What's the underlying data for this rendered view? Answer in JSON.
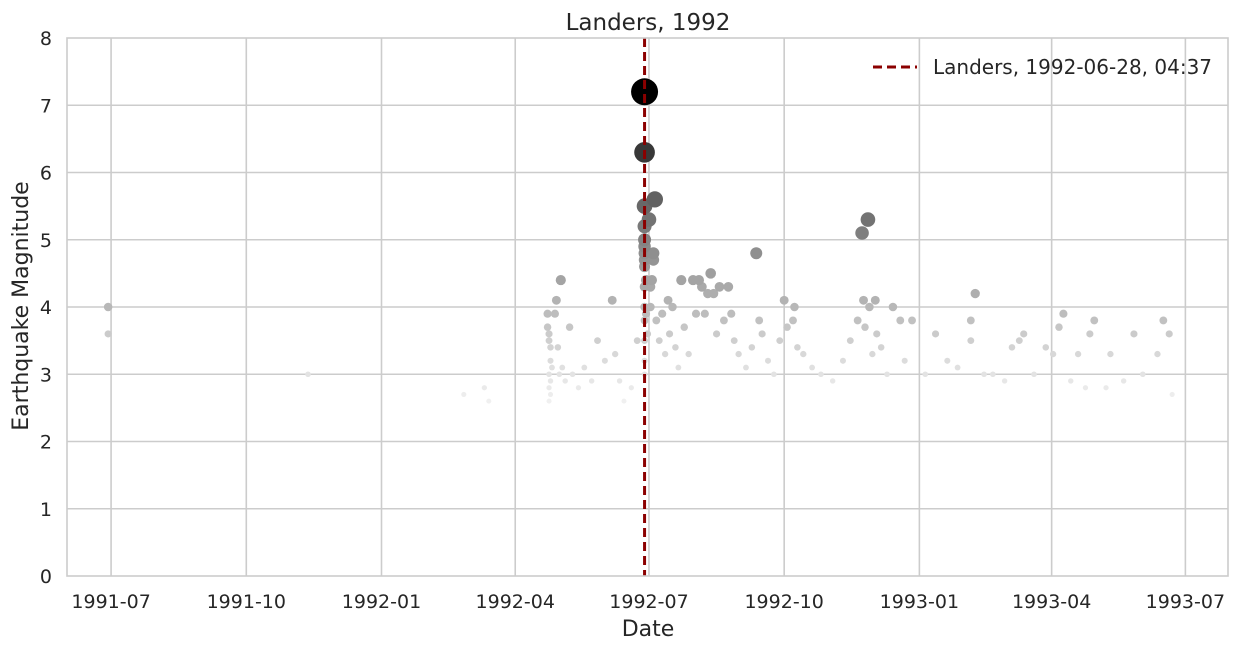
{
  "chart_data": {
    "type": "scatter",
    "title": "Landers, 1992",
    "xlabel": "Date",
    "ylabel": "Earthquake Magnitude",
    "xlim": [
      "1991-06-01",
      "1993-07-30"
    ],
    "ylim": [
      0,
      8
    ],
    "x_ticks": [
      "1991-07",
      "1991-10",
      "1992-01",
      "1992-04",
      "1992-07",
      "1992-10",
      "1993-01",
      "1993-04",
      "1993-07"
    ],
    "y_ticks": [
      "0",
      "1",
      "2",
      "3",
      "4",
      "5",
      "6",
      "7",
      "8"
    ],
    "grid": true,
    "legend": {
      "position": "top-right",
      "entries": [
        "Landers, 1992-06-28, 04:37"
      ]
    },
    "mainshock": {
      "label": "Landers, 1992-06-28, 04:37",
      "date": "1992-06-28",
      "magnitude": 7.2,
      "color": "#8b0000"
    },
    "series": [
      {
        "color_scale": [
          "#f2f2f2",
          "#000000"
        ],
        "points": [
          {
            "date": "1991-06-29",
            "mag": 4.0
          },
          {
            "date": "1991-06-29",
            "mag": 3.6
          },
          {
            "date": "1991-11-12",
            "mag": 3.0
          },
          {
            "date": "1992-02-26",
            "mag": 2.7
          },
          {
            "date": "1992-03-11",
            "mag": 2.8
          },
          {
            "date": "1992-03-14",
            "mag": 2.6
          },
          {
            "date": "1992-04-23",
            "mag": 3.9
          },
          {
            "date": "1992-04-23",
            "mag": 3.7
          },
          {
            "date": "1992-04-24",
            "mag": 3.6
          },
          {
            "date": "1992-04-24",
            "mag": 3.5
          },
          {
            "date": "1992-04-25",
            "mag": 3.4
          },
          {
            "date": "1992-04-25",
            "mag": 3.2
          },
          {
            "date": "1992-04-24",
            "mag": 3.0
          },
          {
            "date": "1992-04-25",
            "mag": 2.9
          },
          {
            "date": "1992-04-24",
            "mag": 2.8
          },
          {
            "date": "1992-04-25",
            "mag": 2.7
          },
          {
            "date": "1992-04-24",
            "mag": 2.6
          },
          {
            "date": "1992-04-26",
            "mag": 3.1
          },
          {
            "date": "1992-04-28",
            "mag": 3.9
          },
          {
            "date": "1992-04-29",
            "mag": 4.1
          },
          {
            "date": "1992-04-30",
            "mag": 3.4
          },
          {
            "date": "1992-05-01",
            "mag": 3.0
          },
          {
            "date": "1992-05-02",
            "mag": 4.4
          },
          {
            "date": "1992-05-03",
            "mag": 3.1
          },
          {
            "date": "1992-05-05",
            "mag": 2.9
          },
          {
            "date": "1992-05-08",
            "mag": 3.7
          },
          {
            "date": "1992-05-10",
            "mag": 3.0
          },
          {
            "date": "1992-05-14",
            "mag": 2.8
          },
          {
            "date": "1992-05-18",
            "mag": 3.1
          },
          {
            "date": "1992-05-23",
            "mag": 2.9
          },
          {
            "date": "1992-05-27",
            "mag": 3.5
          },
          {
            "date": "1992-06-01",
            "mag": 3.2
          },
          {
            "date": "1992-06-06",
            "mag": 4.1
          },
          {
            "date": "1992-06-08",
            "mag": 3.3
          },
          {
            "date": "1992-06-11",
            "mag": 2.9
          },
          {
            "date": "1992-06-14",
            "mag": 2.6
          },
          {
            "date": "1992-06-19",
            "mag": 2.8
          },
          {
            "date": "1992-06-23",
            "mag": 3.5
          },
          {
            "date": "1992-06-28",
            "mag": 7.2
          },
          {
            "date": "1992-06-28",
            "mag": 6.3
          },
          {
            "date": "1992-06-28",
            "mag": 5.5
          },
          {
            "date": "1992-06-28",
            "mag": 5.2
          },
          {
            "date": "1992-06-28",
            "mag": 5.0
          },
          {
            "date": "1992-06-28",
            "mag": 4.9
          },
          {
            "date": "1992-06-28",
            "mag": 4.8
          },
          {
            "date": "1992-06-28",
            "mag": 4.7
          },
          {
            "date": "1992-06-28",
            "mag": 4.6
          },
          {
            "date": "1992-06-28",
            "mag": 4.3
          },
          {
            "date": "1992-06-28",
            "mag": 4.0
          },
          {
            "date": "1992-06-28",
            "mag": 3.8
          },
          {
            "date": "1992-06-28",
            "mag": 3.5
          },
          {
            "date": "1992-06-28",
            "mag": 3.2
          },
          {
            "date": "1992-06-28",
            "mag": 3.0
          },
          {
            "date": "1992-06-29",
            "mag": 4.4
          },
          {
            "date": "1992-06-29",
            "mag": 3.9
          },
          {
            "date": "1992-06-30",
            "mag": 3.6
          },
          {
            "date": "1992-07-01",
            "mag": 5.3
          },
          {
            "date": "1992-07-02",
            "mag": 4.3
          },
          {
            "date": "1992-07-02",
            "mag": 4.0
          },
          {
            "date": "1992-07-03",
            "mag": 4.4
          },
          {
            "date": "1992-07-04",
            "mag": 4.8
          },
          {
            "date": "1992-07-04",
            "mag": 4.7
          },
          {
            "date": "1992-07-05",
            "mag": 5.6
          },
          {
            "date": "1992-07-06",
            "mag": 3.8
          },
          {
            "date": "1992-07-08",
            "mag": 3.5
          },
          {
            "date": "1992-07-10",
            "mag": 3.9
          },
          {
            "date": "1992-07-12",
            "mag": 3.3
          },
          {
            "date": "1992-07-14",
            "mag": 4.1
          },
          {
            "date": "1992-07-15",
            "mag": 3.6
          },
          {
            "date": "1992-07-17",
            "mag": 4.0
          },
          {
            "date": "1992-07-19",
            "mag": 3.4
          },
          {
            "date": "1992-07-21",
            "mag": 3.1
          },
          {
            "date": "1992-07-23",
            "mag": 4.4
          },
          {
            "date": "1992-07-25",
            "mag": 3.7
          },
          {
            "date": "1992-07-28",
            "mag": 3.3
          },
          {
            "date": "1992-07-31",
            "mag": 4.4
          },
          {
            "date": "1992-08-02",
            "mag": 3.9
          },
          {
            "date": "1992-08-04",
            "mag": 4.4
          },
          {
            "date": "1992-08-06",
            "mag": 4.3
          },
          {
            "date": "1992-08-08",
            "mag": 3.9
          },
          {
            "date": "1992-08-10",
            "mag": 4.2
          },
          {
            "date": "1992-08-12",
            "mag": 4.5
          },
          {
            "date": "1992-08-14",
            "mag": 4.2
          },
          {
            "date": "1992-08-16",
            "mag": 3.6
          },
          {
            "date": "1992-08-18",
            "mag": 4.3
          },
          {
            "date": "1992-08-21",
            "mag": 3.8
          },
          {
            "date": "1992-08-24",
            "mag": 4.3
          },
          {
            "date": "1992-08-26",
            "mag": 3.9
          },
          {
            "date": "1992-08-28",
            "mag": 3.5
          },
          {
            "date": "1992-08-31",
            "mag": 3.3
          },
          {
            "date": "1992-09-05",
            "mag": 3.1
          },
          {
            "date": "1992-09-09",
            "mag": 3.4
          },
          {
            "date": "1992-09-12",
            "mag": 4.8
          },
          {
            "date": "1992-09-14",
            "mag": 3.8
          },
          {
            "date": "1992-09-16",
            "mag": 3.6
          },
          {
            "date": "1992-09-20",
            "mag": 3.2
          },
          {
            "date": "1992-09-24",
            "mag": 3.0
          },
          {
            "date": "1992-09-28",
            "mag": 3.5
          },
          {
            "date": "1992-10-01",
            "mag": 4.1
          },
          {
            "date": "1992-10-03",
            "mag": 3.7
          },
          {
            "date": "1992-10-07",
            "mag": 3.8
          },
          {
            "date": "1992-10-08",
            "mag": 4.0
          },
          {
            "date": "1992-10-10",
            "mag": 3.4
          },
          {
            "date": "1992-10-14",
            "mag": 3.3
          },
          {
            "date": "1992-10-20",
            "mag": 3.1
          },
          {
            "date": "1992-10-26",
            "mag": 3.0
          },
          {
            "date": "1992-11-03",
            "mag": 2.9
          },
          {
            "date": "1992-11-10",
            "mag": 3.2
          },
          {
            "date": "1992-11-15",
            "mag": 3.5
          },
          {
            "date": "1992-11-20",
            "mag": 3.8
          },
          {
            "date": "1992-11-23",
            "mag": 5.1
          },
          {
            "date": "1992-11-24",
            "mag": 4.1
          },
          {
            "date": "1992-11-25",
            "mag": 3.7
          },
          {
            "date": "1992-11-27",
            "mag": 5.3
          },
          {
            "date": "1992-11-28",
            "mag": 4.0
          },
          {
            "date": "1992-11-30",
            "mag": 3.3
          },
          {
            "date": "1992-12-02",
            "mag": 4.1
          },
          {
            "date": "1992-12-03",
            "mag": 3.6
          },
          {
            "date": "1992-12-06",
            "mag": 3.4
          },
          {
            "date": "1992-12-10",
            "mag": 3.0
          },
          {
            "date": "1992-12-14",
            "mag": 4.0
          },
          {
            "date": "1992-12-19",
            "mag": 3.8
          },
          {
            "date": "1992-12-22",
            "mag": 3.2
          },
          {
            "date": "1992-12-27",
            "mag": 3.8
          },
          {
            "date": "1993-01-05",
            "mag": 3.0
          },
          {
            "date": "1993-01-12",
            "mag": 3.6
          },
          {
            "date": "1993-01-20",
            "mag": 3.2
          },
          {
            "date": "1993-01-27",
            "mag": 3.1
          },
          {
            "date": "1993-02-05",
            "mag": 3.8
          },
          {
            "date": "1993-02-05",
            "mag": 3.5
          },
          {
            "date": "1993-02-08",
            "mag": 4.2
          },
          {
            "date": "1993-02-14",
            "mag": 3.0
          },
          {
            "date": "1993-02-20",
            "mag": 3.0
          },
          {
            "date": "1993-02-28",
            "mag": 2.9
          },
          {
            "date": "1993-03-05",
            "mag": 3.4
          },
          {
            "date": "1993-03-10",
            "mag": 3.5
          },
          {
            "date": "1993-03-13",
            "mag": 3.6
          },
          {
            "date": "1993-03-20",
            "mag": 3.0
          },
          {
            "date": "1993-03-28",
            "mag": 3.4
          },
          {
            "date": "1993-04-02",
            "mag": 3.3
          },
          {
            "date": "1993-04-06",
            "mag": 3.7
          },
          {
            "date": "1993-04-09",
            "mag": 3.9
          },
          {
            "date": "1993-04-14",
            "mag": 2.9
          },
          {
            "date": "1993-04-19",
            "mag": 3.3
          },
          {
            "date": "1993-04-24",
            "mag": 2.8
          },
          {
            "date": "1993-04-27",
            "mag": 3.6
          },
          {
            "date": "1993-04-30",
            "mag": 3.8
          },
          {
            "date": "1993-05-08",
            "mag": 2.8
          },
          {
            "date": "1993-05-11",
            "mag": 3.3
          },
          {
            "date": "1993-05-20",
            "mag": 2.9
          },
          {
            "date": "1993-05-27",
            "mag": 3.6
          },
          {
            "date": "1993-06-02",
            "mag": 3.0
          },
          {
            "date": "1993-06-12",
            "mag": 3.3
          },
          {
            "date": "1993-06-16",
            "mag": 3.8
          },
          {
            "date": "1993-06-20",
            "mag": 3.6
          },
          {
            "date": "1993-06-22",
            "mag": 2.7
          }
        ]
      }
    ]
  }
}
